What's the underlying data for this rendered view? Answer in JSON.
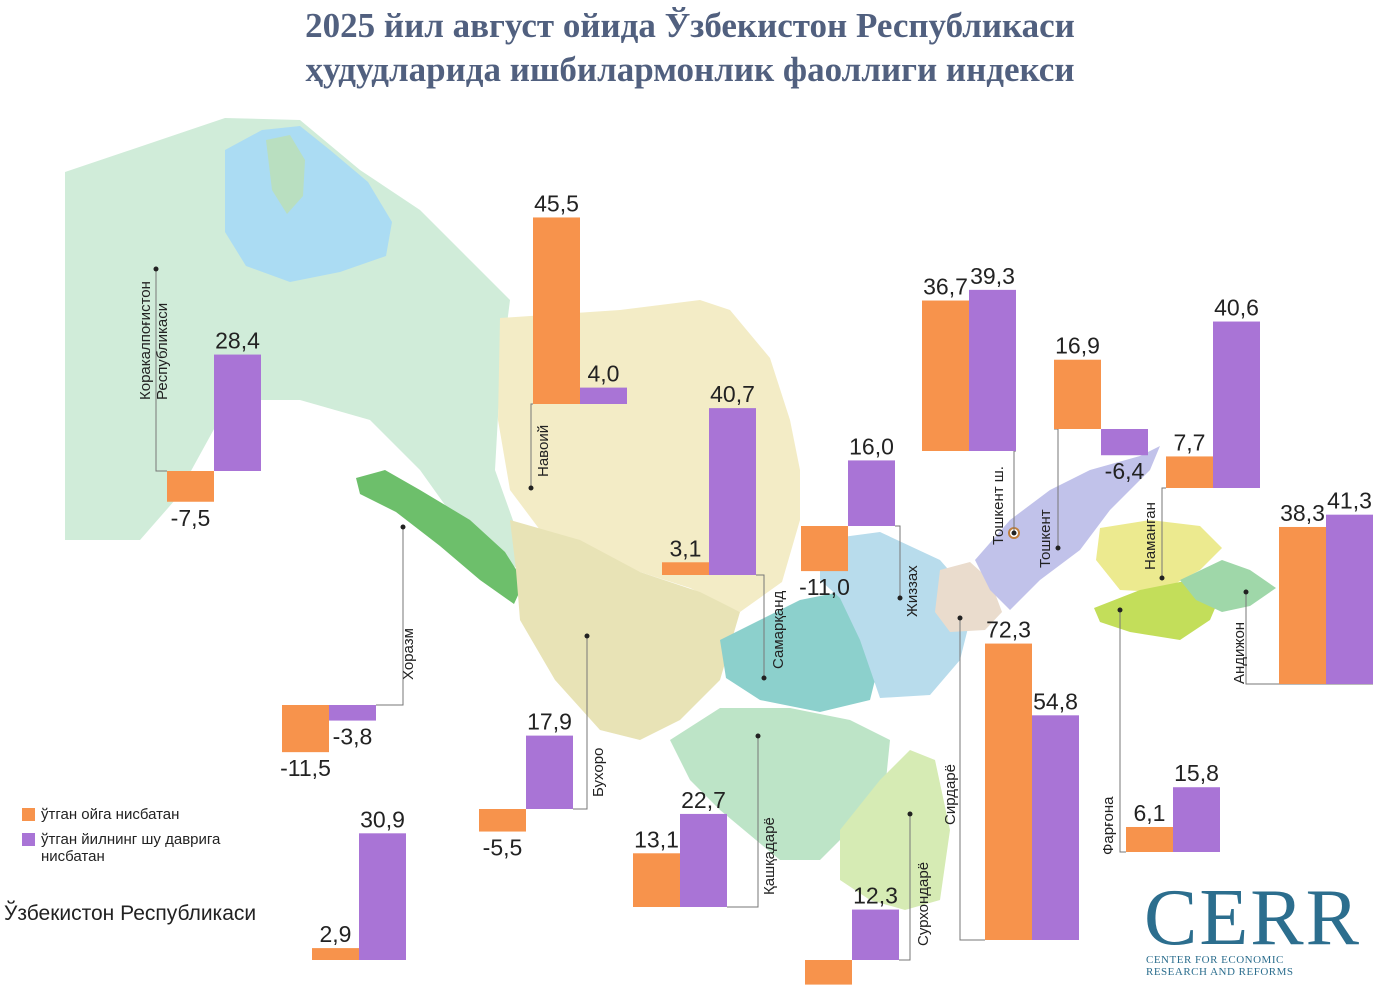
{
  "title_lines": [
    "2025 йил август ойида Ўзбекистон Республикаси",
    "ҳудудларида ишбилармонлик фаоллиги индекси"
  ],
  "legend": {
    "items": [
      {
        "label": "ўтган ойга нисбатан",
        "color": "#f7934c"
      },
      {
        "label": "ўтган йилнинг шу даврига нисбатан",
        "color": "#a974d6"
      }
    ]
  },
  "national_label": "Ўзбекистон Республикаси",
  "logo": {
    "main": "CERR",
    "sub_line_1": "CENTER FOR ECONOMIC",
    "sub_line_2": "RESEARCH AND REFORMS"
  },
  "colors": {
    "month": "#f7934c",
    "year": "#a974d6",
    "title": "#51607f",
    "logo": "#2c6e8e"
  },
  "chart_data": {
    "type": "bar",
    "series_names": [
      "ўтган ойга нисбатан",
      "ўтган йилнинг шу даврига нисбатан"
    ],
    "regions": [
      {
        "key": "karakalpakstan",
        "name": "Коракалпоғистон Республикаси",
        "name_lines": [
          "Коракалпоғистон",
          "Республикаси"
        ],
        "month": -7.5,
        "year": 28.4
      },
      {
        "key": "khorezm",
        "name": "Хоразм",
        "name_lines": [
          "Хоразм"
        ],
        "month": -11.5,
        "year": -3.8
      },
      {
        "key": "navoi",
        "name": "Навоий",
        "name_lines": [
          "Навоий"
        ],
        "month": 45.5,
        "year": 4.0
      },
      {
        "key": "bukhara",
        "name": "Бухоро",
        "name_lines": [
          "Бухоро"
        ],
        "month": -5.5,
        "year": 17.9
      },
      {
        "key": "samarkand",
        "name": "Самарқанд",
        "name_lines": [
          "Самарқанд"
        ],
        "month": 3.1,
        "year": 40.7
      },
      {
        "key": "jizzakh",
        "name": "Жиззах",
        "name_lines": [
          "Жиззах"
        ],
        "month": -11.0,
        "year": 16.0
      },
      {
        "key": "kashkadarya",
        "name": "Қашқадарё",
        "name_lines": [
          "Қашқадарё"
        ],
        "month": 13.1,
        "year": 22.7
      },
      {
        "key": "surkhandarya",
        "name": "Сурхондарё",
        "name_lines": [
          "Сурхондарё"
        ],
        "month": -6.0,
        "year": 12.3
      },
      {
        "key": "syrdarya",
        "name": "Сирдарё",
        "name_lines": [
          "Сирдарё"
        ],
        "month": 72.3,
        "year": 54.8
      },
      {
        "key": "tashkent_city",
        "name": "Тошкент ш.",
        "name_lines": [
          "Тошкент ш."
        ],
        "month": 36.7,
        "year": 39.3
      },
      {
        "key": "tashkent_region",
        "name": "Тошкент",
        "name_lines": [
          "Тошкент"
        ],
        "month": 16.9,
        "year": -6.4
      },
      {
        "key": "namangan",
        "name": "Наманган",
        "name_lines": [
          "Наманган"
        ],
        "month": 7.7,
        "year": 40.6
      },
      {
        "key": "andijan",
        "name": "Андижон",
        "name_lines": [
          "Андижон"
        ],
        "month": 38.3,
        "year": 41.3
      },
      {
        "key": "fergana",
        "name": "Фарғона",
        "name_lines": [
          "Фарғона"
        ],
        "month": 6.1,
        "year": 15.8
      },
      {
        "key": "uzbekistan",
        "name": "Ўзбекистон Республикаси",
        "name_lines": [],
        "month": 2.9,
        "year": 30.9
      }
    ]
  }
}
